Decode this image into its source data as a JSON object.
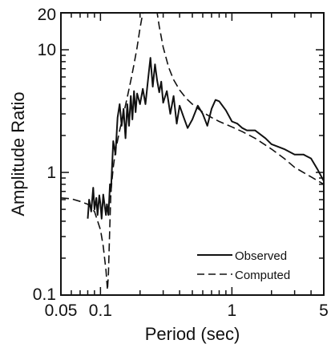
{
  "chart_data": {
    "type": "line",
    "xlabel": "Period (sec)",
    "ylabel": "Amplitude Ratio",
    "x_scale": "log",
    "y_scale": "log",
    "xlim": [
      0.05,
      5
    ],
    "ylim": [
      0.1,
      20
    ],
    "x_ticks": [
      {
        "value": 0.05,
        "label": "0.05"
      },
      {
        "value": 0.1,
        "label": "0.1"
      },
      {
        "value": 1,
        "label": "1"
      },
      {
        "value": 5,
        "label": "5"
      }
    ],
    "y_ticks": [
      {
        "value": 0.1,
        "label": "0.1"
      },
      {
        "value": 1,
        "label": "1"
      },
      {
        "value": 10,
        "label": "10"
      },
      {
        "value": 20,
        "label": "20"
      }
    ],
    "grid": false,
    "legend_position": "bottom-right",
    "series": [
      {
        "name": "Observed",
        "style": "solid",
        "color": "#111111",
        "x": [
          0.08,
          0.082,
          0.085,
          0.088,
          0.09,
          0.093,
          0.095,
          0.098,
          0.1,
          0.102,
          0.105,
          0.108,
          0.11,
          0.112,
          0.115,
          0.118,
          0.12,
          0.125,
          0.13,
          0.135,
          0.14,
          0.145,
          0.15,
          0.155,
          0.16,
          0.165,
          0.17,
          0.175,
          0.18,
          0.185,
          0.19,
          0.2,
          0.21,
          0.22,
          0.23,
          0.24,
          0.25,
          0.26,
          0.27,
          0.28,
          0.29,
          0.3,
          0.32,
          0.34,
          0.36,
          0.38,
          0.4,
          0.43,
          0.46,
          0.5,
          0.55,
          0.6,
          0.65,
          0.7,
          0.75,
          0.8,
          0.9,
          1.0,
          1.1,
          1.2,
          1.3,
          1.5,
          1.8,
          2.0,
          2.5,
          3.0,
          3.5,
          4.0,
          4.5,
          5.0
        ],
        "y": [
          0.42,
          0.6,
          0.48,
          0.75,
          0.5,
          0.62,
          0.45,
          0.65,
          0.55,
          0.42,
          0.66,
          0.52,
          0.45,
          0.55,
          0.45,
          0.8,
          0.7,
          1.8,
          1.4,
          2.8,
          3.6,
          2.4,
          3.3,
          1.9,
          3.6,
          2.4,
          4.2,
          2.7,
          4.6,
          3.1,
          4.4,
          3.6,
          4.8,
          3.6,
          5.7,
          8.6,
          5.0,
          7.6,
          5.6,
          4.5,
          5.5,
          3.7,
          4.6,
          3.0,
          4.2,
          2.5,
          3.5,
          2.8,
          2.3,
          2.7,
          3.5,
          3.0,
          2.4,
          3.3,
          3.9,
          3.8,
          3.2,
          2.6,
          2.5,
          2.3,
          2.2,
          2.2,
          1.9,
          1.7,
          1.55,
          1.4,
          1.4,
          1.3,
          1.05,
          0.85
        ]
      },
      {
        "name": "Computed",
        "style": "dashed",
        "color": "#111111",
        "x": [
          0.05,
          0.06,
          0.07,
          0.08,
          0.09,
          0.1,
          0.105,
          0.11,
          0.113,
          0.115,
          0.118,
          0.12,
          0.125,
          0.13,
          0.14,
          0.15,
          0.16,
          0.17,
          0.18,
          0.19,
          0.2,
          0.21,
          0.22,
          0.23,
          0.24,
          0.25,
          0.26,
          0.27,
          0.28,
          0.3,
          0.33,
          0.36,
          0.4,
          0.45,
          0.5,
          0.6,
          0.7,
          0.8,
          1.0,
          1.2,
          1.5,
          2.0,
          2.5,
          3.0,
          4.0,
          5.0
        ],
        "y": [
          0.62,
          0.61,
          0.58,
          0.55,
          0.48,
          0.34,
          0.25,
          0.16,
          0.11,
          0.15,
          0.4,
          0.7,
          1.1,
          1.5,
          2.2,
          3.0,
          4.1,
          5.6,
          7.6,
          10.5,
          15.0,
          20.0,
          20.0,
          20.0,
          20.0,
          20.0,
          20.0,
          20.0,
          15.5,
          10.5,
          7.2,
          5.7,
          4.7,
          4.0,
          3.6,
          3.1,
          2.8,
          2.6,
          2.35,
          2.15,
          1.9,
          1.55,
          1.3,
          1.1,
          0.92,
          0.8
        ]
      }
    ]
  }
}
